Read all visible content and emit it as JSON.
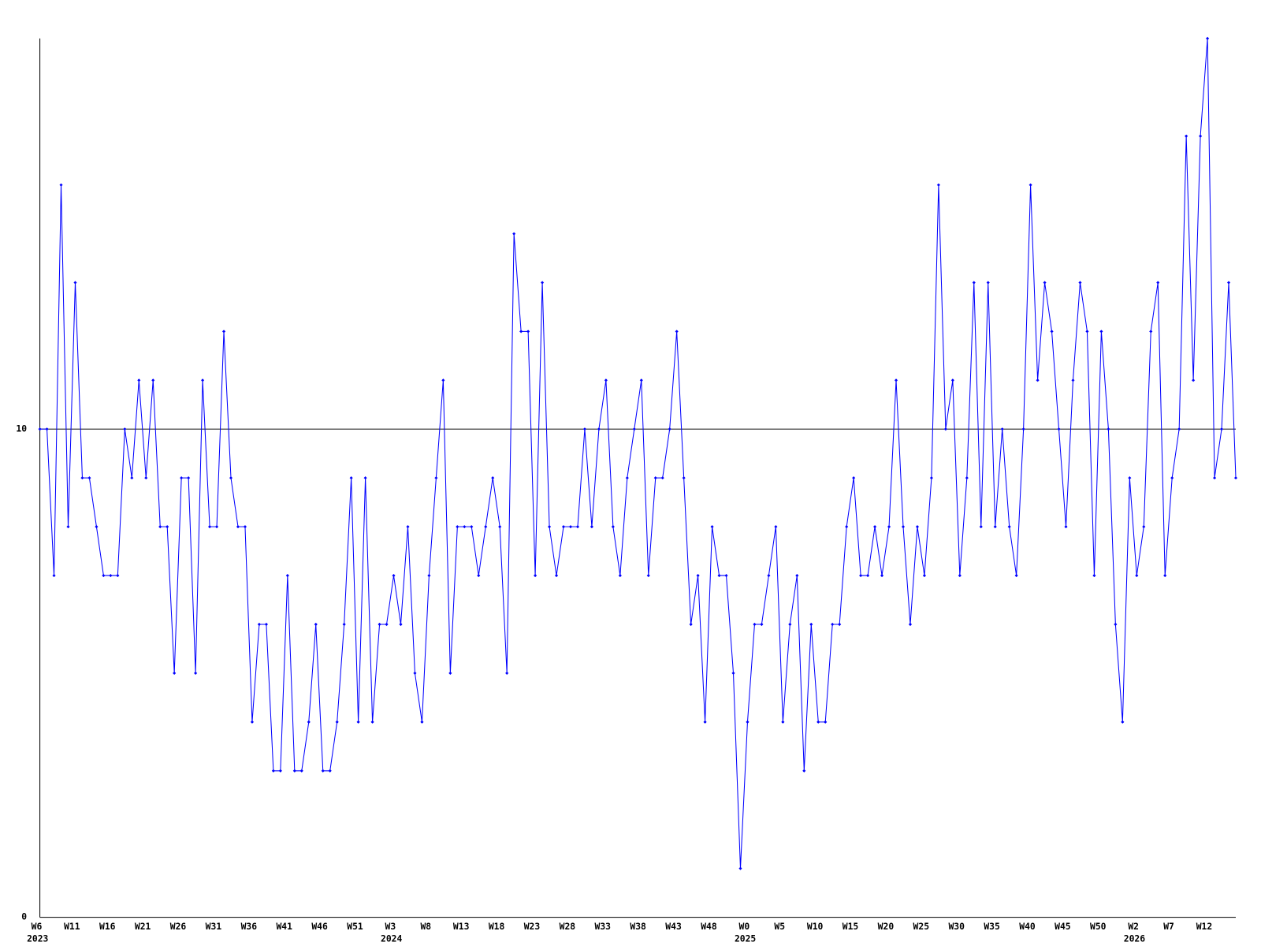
{
  "chart_data": {
    "type": "line",
    "categories": [
      "W6",
      null,
      null,
      null,
      null,
      "W11",
      null,
      null,
      null,
      null,
      "W16",
      null,
      null,
      null,
      null,
      "W21",
      null,
      null,
      null,
      null,
      "W26",
      null,
      null,
      null,
      null,
      "W31",
      null,
      null,
      null,
      null,
      "W36",
      null,
      null,
      null,
      null,
      "W41",
      null,
      null,
      null,
      null,
      "W46",
      null,
      null,
      null,
      null,
      "W51",
      null,
      null,
      null,
      null,
      "W3",
      null,
      null,
      null,
      null,
      "W8",
      null,
      null,
      null,
      null,
      "W13",
      null,
      null,
      null,
      null,
      "W18",
      null,
      null,
      null,
      null,
      "W23",
      null,
      null,
      null,
      null,
      "W28",
      null,
      null,
      null,
      null,
      "W33",
      null,
      null,
      null,
      null,
      "W38",
      null,
      null,
      null,
      null,
      "W43",
      null,
      null,
      null,
      null,
      "W48",
      null,
      null,
      null,
      null,
      "W0",
      null,
      null,
      null,
      null,
      "W5",
      null,
      null,
      null,
      null,
      "W10",
      null,
      null,
      null,
      null,
      "W15",
      null,
      null,
      null,
      null,
      "W20",
      null,
      null,
      null,
      null,
      "W25",
      null,
      null,
      null,
      null,
      "W30",
      null,
      null,
      null,
      null,
      "W35",
      null,
      null,
      null,
      null,
      "W40",
      null,
      null,
      null,
      null,
      "W45",
      null,
      null,
      null,
      null,
      "W50",
      null,
      null,
      null,
      null,
      "W2",
      null,
      null,
      null,
      null,
      "W7",
      null,
      null,
      null,
      null,
      "W12",
      null,
      null,
      null,
      null
    ],
    "years": [
      "2023",
      null,
      null,
      null,
      null,
      null,
      null,
      null,
      null,
      null,
      null,
      null,
      null,
      null,
      null,
      null,
      null,
      null,
      null,
      null,
      null,
      null,
      null,
      null,
      null,
      null,
      null,
      null,
      null,
      null,
      null,
      null,
      null,
      null,
      null,
      null,
      null,
      null,
      null,
      null,
      null,
      null,
      null,
      null,
      null,
      null,
      null,
      null,
      null,
      null,
      "2024",
      null,
      null,
      null,
      null,
      null,
      null,
      null,
      null,
      null,
      null,
      null,
      null,
      null,
      null,
      null,
      null,
      null,
      null,
      null,
      null,
      null,
      null,
      null,
      null,
      null,
      null,
      null,
      null,
      null,
      null,
      null,
      null,
      null,
      null,
      null,
      null,
      null,
      null,
      null,
      null,
      null,
      null,
      null,
      null,
      null,
      null,
      null,
      null,
      null,
      "2025",
      null,
      null,
      null,
      null,
      null,
      null,
      null,
      null,
      null,
      null,
      null,
      null,
      null,
      null,
      null,
      null,
      null,
      null,
      null,
      null,
      null,
      null,
      null,
      null,
      null,
      null,
      null,
      null,
      null,
      null,
      null,
      null,
      null,
      null,
      null,
      null,
      null,
      null,
      null,
      null,
      null,
      null,
      null,
      null,
      null,
      null,
      null,
      null,
      null,
      null,
      null,
      null,
      null,
      null,
      "2026",
      null,
      null,
      null,
      null,
      null,
      null,
      null,
      null,
      null,
      null,
      null,
      null,
      null,
      null
    ],
    "values": [
      10,
      10,
      7,
      15,
      8,
      13,
      9,
      9,
      8,
      7,
      7,
      7,
      10,
      9,
      11,
      9,
      11,
      8,
      8,
      5,
      9,
      9,
      5,
      11,
      8,
      8,
      12,
      9,
      8,
      8,
      4,
      6,
      6,
      3,
      3,
      7,
      3,
      3,
      4,
      6,
      3,
      3,
      4,
      6,
      9,
      4,
      9,
      4,
      6,
      6,
      7,
      6,
      8,
      5,
      4,
      7,
      9,
      11,
      5,
      8,
      8,
      8,
      7,
      8,
      9,
      8,
      5,
      14,
      12,
      12,
      7,
      13,
      8,
      7,
      8,
      8,
      8,
      10,
      8,
      10,
      11,
      8,
      7,
      9,
      10,
      11,
      7,
      9,
      9,
      10,
      12,
      9,
      6,
      7,
      4,
      8,
      7,
      7,
      5,
      1,
      4,
      6,
      6,
      7,
      8,
      4,
      6,
      7,
      3,
      6,
      4,
      4,
      6,
      6,
      8,
      9,
      7,
      7,
      8,
      7,
      8,
      11,
      8,
      6,
      8,
      7,
      9,
      15,
      10,
      11,
      7,
      9,
      13,
      8,
      13,
      8,
      10,
      8,
      7,
      10,
      15,
      11,
      13,
      12,
      10,
      8,
      11,
      13,
      12,
      7,
      12,
      10,
      6,
      4,
      9,
      7,
      8,
      12,
      13,
      7,
      9,
      10,
      16,
      11,
      16,
      18,
      9,
      10,
      13,
      9
    ],
    "color": "#0000ff",
    "ylim": [
      0,
      18
    ],
    "yticks": [
      0,
      10
    ],
    "grid": true
  }
}
